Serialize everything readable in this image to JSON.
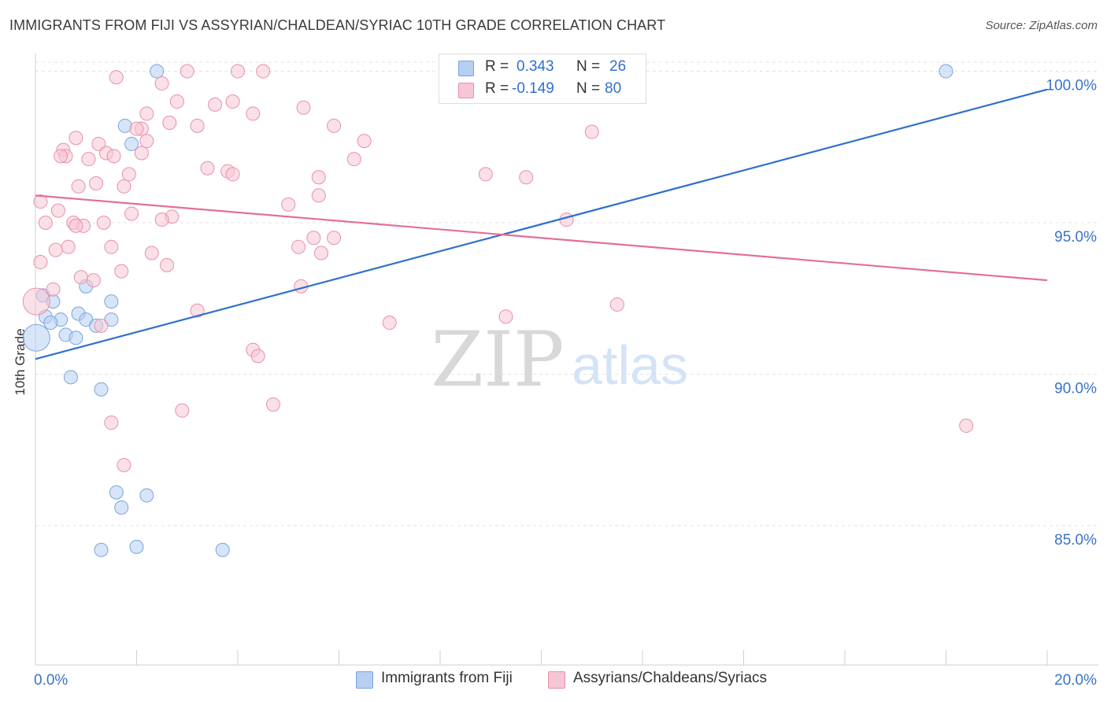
{
  "title": "IMMIGRANTS FROM FIJI VS ASSYRIAN/CHALDEAN/SYRIAC 10TH GRADE CORRELATION CHART",
  "source": "Source: ZipAtlas.com",
  "watermark": {
    "zip": "ZIP",
    "atlas": "atlas"
  },
  "legend": {
    "rows": [
      {
        "r_label": "R =",
        "r_value": "0.343",
        "n_label": "N =",
        "n_value": "26"
      },
      {
        "r_label": "R =",
        "r_value": "-0.149",
        "n_label": "N =",
        "n_value": "80"
      }
    ]
  },
  "colors": {
    "blue_fill": "#b7cff2",
    "blue_stroke": "#7aa3de",
    "blue_line": "#2f6fd0",
    "pink_fill": "#f6c6d4",
    "pink_stroke": "#e890ab",
    "pink_line": "#e36f97",
    "tick_text": "#3a72c8"
  },
  "chart_data": {
    "type": "scatter",
    "title": "IMMIGRANTS FROM FIJI VS ASSYRIAN/CHALDEAN/SYRIAC 10TH GRADE CORRELATION CHART",
    "xlabel": "",
    "ylabel": "10th Grade",
    "xlim": [
      0,
      20
    ],
    "ylim": [
      80.4,
      100.3
    ],
    "x_tick_labels": [
      {
        "value": 0,
        "label": "0.0%"
      },
      {
        "value": 20,
        "label": "20.0%"
      }
    ],
    "y_tick_labels": [
      {
        "value": 100,
        "label": "100.0%"
      },
      {
        "value": 95,
        "label": "95.0%"
      },
      {
        "value": 90,
        "label": "90.0%"
      },
      {
        "value": 85,
        "label": "85.0%"
      }
    ],
    "legend_position": "top-center",
    "series": [
      {
        "name": "Immigrants from Fiji",
        "color": "#7aa3de",
        "r": 0.343,
        "n": 26,
        "trend": {
          "x0": 0,
          "y0": 90.5,
          "x1": 20,
          "y1": 99.4
        },
        "points": [
          {
            "x": 2.4,
            "y": 100.0
          },
          {
            "x": 18.0,
            "y": 100.0
          },
          {
            "x": 1.77,
            "y": 98.2
          },
          {
            "x": 1.9,
            "y": 97.6
          },
          {
            "x": 0.15,
            "y": 92.6
          },
          {
            "x": 0.35,
            "y": 92.4
          },
          {
            "x": 0.2,
            "y": 91.9
          },
          {
            "x": 0.5,
            "y": 91.8
          },
          {
            "x": 0.85,
            "y": 92.0
          },
          {
            "x": 1.0,
            "y": 91.8
          },
          {
            "x": 1.5,
            "y": 92.4
          },
          {
            "x": 1.5,
            "y": 91.8
          },
          {
            "x": 0.3,
            "y": 91.7
          },
          {
            "x": 1.2,
            "y": 91.6
          },
          {
            "x": 0.6,
            "y": 91.3
          },
          {
            "x": 0.8,
            "y": 91.2
          },
          {
            "x": 0.02,
            "y": 91.2,
            "big": true
          },
          {
            "x": 1.0,
            "y": 92.9
          },
          {
            "x": 0.7,
            "y": 89.9
          },
          {
            "x": 1.3,
            "y": 89.5
          },
          {
            "x": 1.6,
            "y": 86.1
          },
          {
            "x": 2.2,
            "y": 86.0
          },
          {
            "x": 1.7,
            "y": 85.6
          },
          {
            "x": 1.3,
            "y": 84.2
          },
          {
            "x": 2.0,
            "y": 84.3
          },
          {
            "x": 3.7,
            "y": 84.2
          }
        ]
      },
      {
        "name": "Assyrians/Chaldeans/Syriacs",
        "color": "#e890ab",
        "r": -0.149,
        "n": 80,
        "trend": {
          "x0": 0,
          "y0": 95.9,
          "x1": 20,
          "y1": 93.1
        },
        "points": [
          {
            "x": 3.0,
            "y": 100.0
          },
          {
            "x": 4.0,
            "y": 100.0
          },
          {
            "x": 4.5,
            "y": 100.0
          },
          {
            "x": 1.6,
            "y": 99.8
          },
          {
            "x": 2.5,
            "y": 99.6
          },
          {
            "x": 2.8,
            "y": 99.0
          },
          {
            "x": 3.55,
            "y": 98.9
          },
          {
            "x": 3.9,
            "y": 99.0
          },
          {
            "x": 5.3,
            "y": 98.8
          },
          {
            "x": 4.3,
            "y": 98.6
          },
          {
            "x": 2.2,
            "y": 98.6
          },
          {
            "x": 2.65,
            "y": 98.3
          },
          {
            "x": 3.2,
            "y": 98.2
          },
          {
            "x": 2.1,
            "y": 98.1
          },
          {
            "x": 2.0,
            "y": 98.1
          },
          {
            "x": 5.9,
            "y": 98.2
          },
          {
            "x": 11.0,
            "y": 98.0
          },
          {
            "x": 0.8,
            "y": 97.8
          },
          {
            "x": 2.2,
            "y": 97.7
          },
          {
            "x": 6.5,
            "y": 97.7
          },
          {
            "x": 1.25,
            "y": 97.6
          },
          {
            "x": 0.55,
            "y": 97.4
          },
          {
            "x": 2.1,
            "y": 97.3
          },
          {
            "x": 1.4,
            "y": 97.3
          },
          {
            "x": 1.55,
            "y": 97.2
          },
          {
            "x": 0.6,
            "y": 97.2
          },
          {
            "x": 0.5,
            "y": 97.2
          },
          {
            "x": 1.05,
            "y": 97.1
          },
          {
            "x": 6.3,
            "y": 97.1
          },
          {
            "x": 3.4,
            "y": 96.8
          },
          {
            "x": 3.8,
            "y": 96.7
          },
          {
            "x": 3.9,
            "y": 96.6
          },
          {
            "x": 1.85,
            "y": 96.6
          },
          {
            "x": 8.9,
            "y": 96.6
          },
          {
            "x": 9.7,
            "y": 96.5
          },
          {
            "x": 5.6,
            "y": 96.5
          },
          {
            "x": 1.2,
            "y": 96.3
          },
          {
            "x": 1.75,
            "y": 96.2
          },
          {
            "x": 0.85,
            "y": 96.2
          },
          {
            "x": 5.6,
            "y": 95.9
          },
          {
            "x": 0.1,
            "y": 95.7
          },
          {
            "x": 5.0,
            "y": 95.6
          },
          {
            "x": 0.45,
            "y": 95.4
          },
          {
            "x": 1.9,
            "y": 95.3
          },
          {
            "x": 2.7,
            "y": 95.2
          },
          {
            "x": 10.5,
            "y": 95.1
          },
          {
            "x": 2.5,
            "y": 95.1
          },
          {
            "x": 0.2,
            "y": 95.0
          },
          {
            "x": 0.75,
            "y": 95.0
          },
          {
            "x": 1.35,
            "y": 95.0
          },
          {
            "x": 0.95,
            "y": 94.9
          },
          {
            "x": 5.5,
            "y": 94.5
          },
          {
            "x": 5.9,
            "y": 94.5
          },
          {
            "x": 1.5,
            "y": 94.2
          },
          {
            "x": 0.65,
            "y": 94.2
          },
          {
            "x": 5.2,
            "y": 94.2
          },
          {
            "x": 0.4,
            "y": 94.1
          },
          {
            "x": 5.65,
            "y": 94.0
          },
          {
            "x": 2.3,
            "y": 94.0
          },
          {
            "x": 0.1,
            "y": 93.7
          },
          {
            "x": 2.6,
            "y": 93.6
          },
          {
            "x": 1.7,
            "y": 93.4
          },
          {
            "x": 0.9,
            "y": 93.2
          },
          {
            "x": 1.15,
            "y": 93.1
          },
          {
            "x": 5.25,
            "y": 92.9
          },
          {
            "x": 0.35,
            "y": 92.8
          },
          {
            "x": 0.02,
            "y": 92.4,
            "big": true
          },
          {
            "x": 11.5,
            "y": 92.3
          },
          {
            "x": 3.2,
            "y": 92.1
          },
          {
            "x": 9.3,
            "y": 91.9
          },
          {
            "x": 7.0,
            "y": 91.7
          },
          {
            "x": 1.3,
            "y": 91.6
          },
          {
            "x": 4.3,
            "y": 90.8
          },
          {
            "x": 4.4,
            "y": 90.6
          },
          {
            "x": 4.7,
            "y": 89.0
          },
          {
            "x": 2.9,
            "y": 88.8
          },
          {
            "x": 1.5,
            "y": 88.4
          },
          {
            "x": 18.4,
            "y": 88.3
          },
          {
            "x": 1.75,
            "y": 87.0
          },
          {
            "x": 0.8,
            "y": 94.9
          }
        ]
      }
    ]
  }
}
